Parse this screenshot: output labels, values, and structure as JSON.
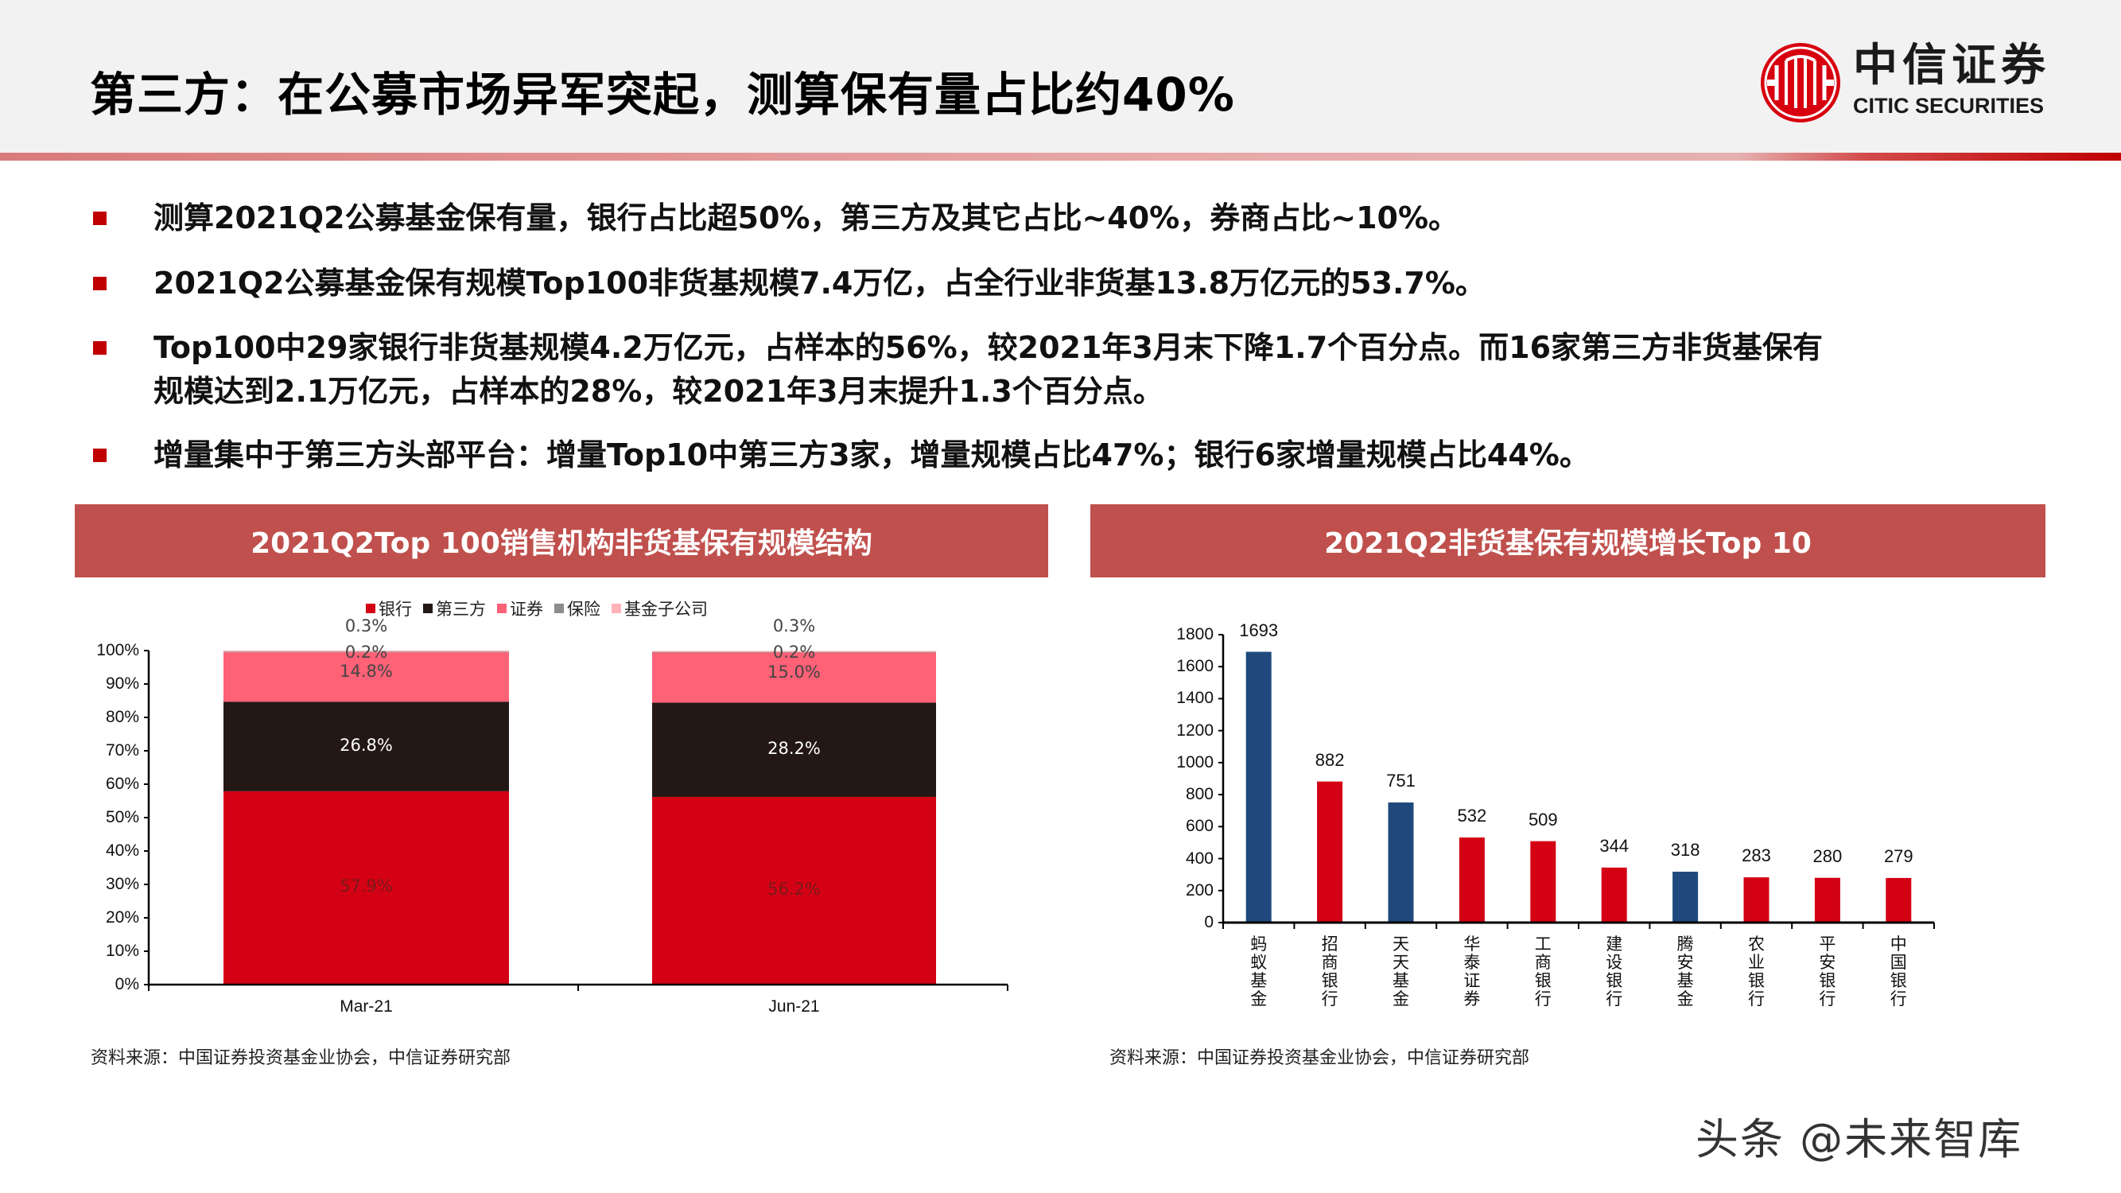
{
  "header": {
    "title": "第三方：在公募市场异军突起，测算保有量占比约40%",
    "logo_cn": "中信证券",
    "logo_en": "CITIC SECURITIES"
  },
  "bullets": [
    "测算2021Q2公募基金保有量，银行占比超50%，第三方及其它占比~40%，券商占比~10%。",
    "2021Q2公募基金保有规模Top100非货基规模7.4万亿，占全行业非货基13.8万亿元的53.7%。",
    "Top100中29家银行非货基规模4.2万亿元，占样本的56%，较2021年3月末下降1.7个百分点。而16家第三方非货基保有",
    "规模达到2.1万亿元，占样本的28%，较2021年3月末提升1.3个百分点。",
    "增量集中于第三方头部平台：增量Top10中第三方3家，增量规模占比47%；银行6家增量规模占比44%。"
  ],
  "left_panel": {
    "title": "2021Q2Top 100销售机构非货基保有规模结构",
    "source": "资料来源：中国证券投资基金业协会，中信证券研究部"
  },
  "right_panel": {
    "title": "2021Q2非货基保有规模增长Top 10",
    "source": "资料来源：中国证券投资基金业协会，中信证券研究部"
  },
  "watermark": "头条 @未来智库",
  "colors": {
    "brand_red": "#c00000",
    "title_bar": "#c0504d",
    "bank": "#d40014",
    "third_party": "#231815",
    "securities": "#ff6176",
    "insurance": "#8c8c8c",
    "fund_sub": "#ffb3b8",
    "blue_bar": "#1f497d"
  },
  "chart_data": [
    {
      "type": "bar",
      "stacked": true,
      "title": "2021Q2Top 100销售机构非货基保有规模结构",
      "categories": [
        "Mar-21",
        "Jun-21"
      ],
      "series": [
        {
          "name": "银行",
          "values": [
            57.9,
            56.2
          ],
          "labels": [
            "57.9%",
            "56.2%"
          ]
        },
        {
          "name": "第三方",
          "values": [
            26.8,
            28.2
          ],
          "labels": [
            "26.8%",
            "28.2%"
          ]
        },
        {
          "name": "证券",
          "values": [
            14.8,
            15.0
          ],
          "labels": [
            "14.8%",
            "15.0%"
          ]
        },
        {
          "name": "保险",
          "values": [
            0.2,
            0.2
          ],
          "labels": [
            "0.2%",
            "0.2%"
          ]
        },
        {
          "name": "基金子公司",
          "values": [
            0.3,
            0.3
          ],
          "labels": [
            "0.3%",
            "0.3%"
          ]
        }
      ],
      "yticks": [
        "0%",
        "10%",
        "20%",
        "30%",
        "40%",
        "50%",
        "60%",
        "70%",
        "80%",
        "90%",
        "100%"
      ],
      "ylim": [
        0,
        100
      ],
      "xlabel": "",
      "ylabel": "",
      "legend_position": "top",
      "grid": false
    },
    {
      "type": "bar",
      "title": "2021Q2非货基保有规模增长Top 10",
      "categories": [
        "蚂蚁基金",
        "招商银行",
        "天天基金",
        "华泰证券",
        "工商银行",
        "建设银行",
        "腾安基金",
        "农业银行",
        "平安银行",
        "中国银行"
      ],
      "values": [
        1693,
        882,
        751,
        532,
        509,
        344,
        318,
        283,
        280,
        279
      ],
      "bar_types": [
        "third_party",
        "bank",
        "third_party",
        "securities",
        "bank",
        "bank",
        "third_party",
        "bank",
        "bank",
        "bank"
      ],
      "yticks": [
        "0",
        "200",
        "400",
        "600",
        "800",
        "1000",
        "1200",
        "1400",
        "1600",
        "1800"
      ],
      "ylim": [
        0,
        1800
      ],
      "xlabel": "",
      "ylabel": "",
      "grid": false
    }
  ]
}
